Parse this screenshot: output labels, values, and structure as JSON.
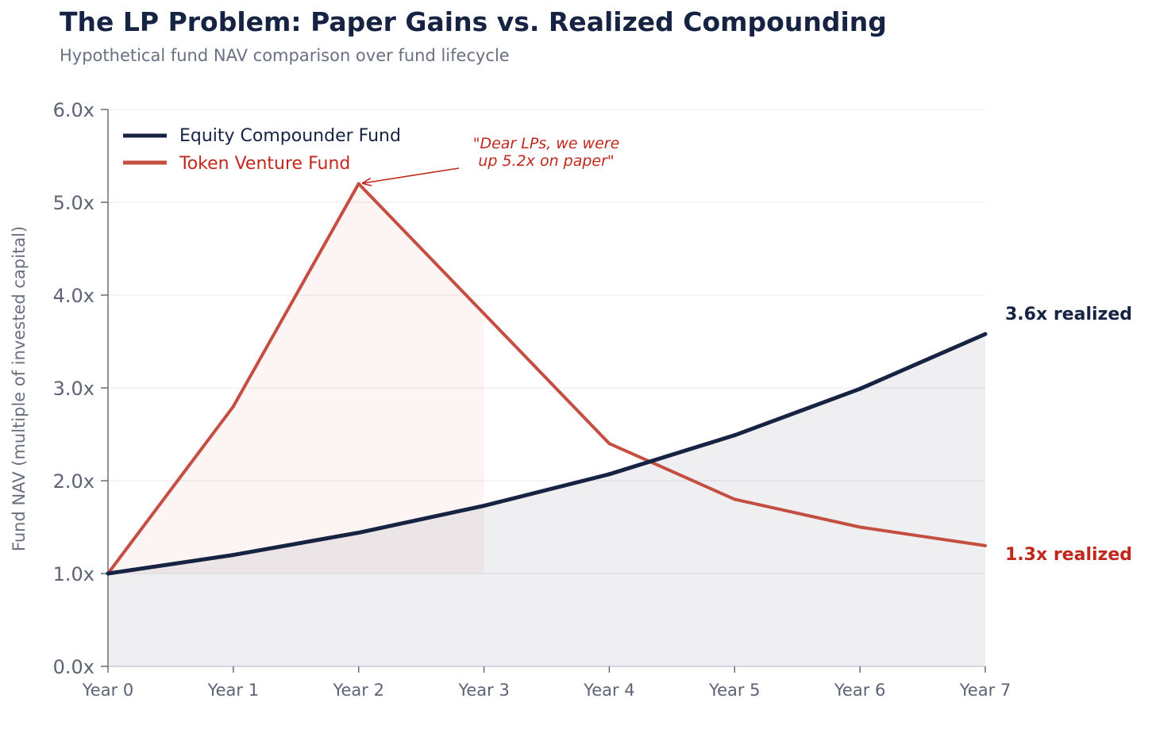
{
  "title": "The LP Problem: Paper Gains vs. Realized Compounding",
  "subtitle": "Hypothetical fund NAV comparison over fund lifecycle",
  "colors": {
    "equity": "#172342",
    "token": "#c44e42",
    "annotation": "#c0281e",
    "grid": "#e6e8ec"
  },
  "chart_data": {
    "type": "line",
    "title": "The LP Problem: Paper Gains vs. Realized Compounding",
    "subtitle": "Hypothetical fund NAV comparison over fund lifecycle",
    "xlabel": "",
    "ylabel": "Fund NAV (multiple of invested capital)",
    "categories": [
      "Year 0",
      "Year 1",
      "Year 2",
      "Year 3",
      "Year 4",
      "Year 5",
      "Year 6",
      "Year 7"
    ],
    "ylim": [
      0,
      6
    ],
    "yticks": [
      "0.0x",
      "1.0x",
      "2.0x",
      "3.0x",
      "4.0x",
      "5.0x",
      "6.0x"
    ],
    "grid": "horizontal",
    "legend_position": "top-left",
    "series": [
      {
        "name": "Equity Compounder Fund",
        "values": [
          1.0,
          1.2,
          1.44,
          1.73,
          2.07,
          2.49,
          2.99,
          3.58
        ]
      },
      {
        "name": "Token Venture Fund",
        "values": [
          1.0,
          2.8,
          5.2,
          3.8,
          2.4,
          1.8,
          1.5,
          1.3
        ]
      }
    ],
    "annotations": {
      "peak_line1": "\"Dear LPs, we were",
      "peak_line2": "up 5.2x on paper\"",
      "equity_end": "3.6x realized",
      "token_end": "1.3x realized"
    }
  }
}
